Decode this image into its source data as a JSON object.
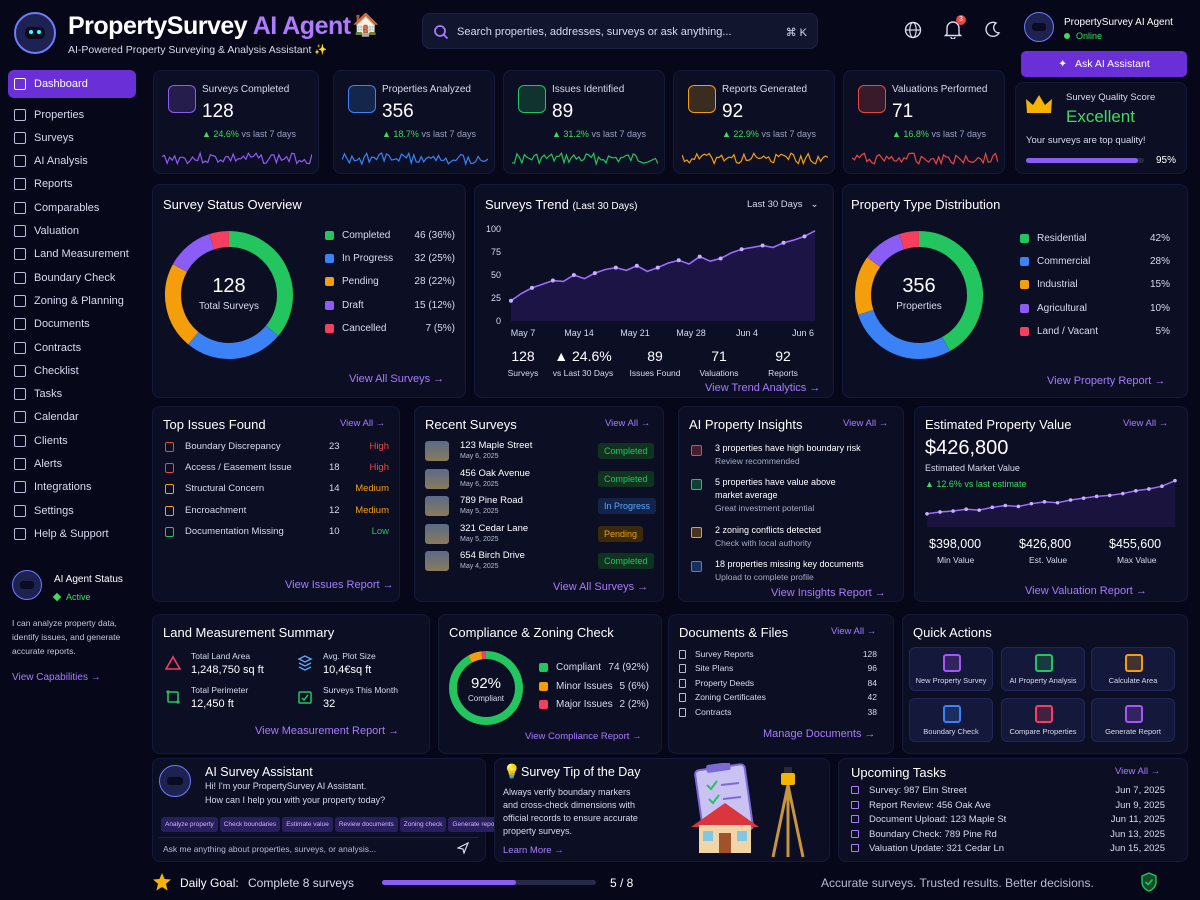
{
  "header": {
    "title_main": "PropertySurvey",
    "title_accent": "AI Agent",
    "subtitle": "AI-Powered Property Surveying & Analysis Assistant ✨",
    "search_placeholder": "Search properties, addresses, surveys or ask anything...",
    "search_shortcut": "⌘ K",
    "notif_count": "3",
    "user_name": "PropertySurvey AI Agent",
    "user_status": "Online",
    "ask_button": "Ask AI Assistant"
  },
  "sidebar": {
    "items": [
      {
        "label": "Dashboard",
        "icon": "dashboard-icon"
      },
      {
        "label": "Properties",
        "icon": "home-icon"
      },
      {
        "label": "Surveys",
        "icon": "clipboard-icon"
      },
      {
        "label": "AI Analysis",
        "icon": "brain-icon"
      },
      {
        "label": "Reports",
        "icon": "report-icon"
      },
      {
        "label": "Comparables",
        "icon": "compare-icon"
      },
      {
        "label": "Valuation",
        "icon": "dollar-icon"
      },
      {
        "label": "Land Measurement",
        "icon": "ruler-icon"
      },
      {
        "label": "Boundary Check",
        "icon": "boundary-icon"
      },
      {
        "label": "Zoning & Planning",
        "icon": "map-icon"
      },
      {
        "label": "Documents",
        "icon": "document-icon"
      },
      {
        "label": "Contracts",
        "icon": "contract-icon"
      },
      {
        "label": "Checklist",
        "icon": "checklist-icon"
      },
      {
        "label": "Tasks",
        "icon": "tasks-icon"
      },
      {
        "label": "Calendar",
        "icon": "calendar-icon"
      },
      {
        "label": "Clients",
        "icon": "clients-icon"
      },
      {
        "label": "Alerts",
        "icon": "bell-icon"
      },
      {
        "label": "Integrations",
        "icon": "integration-icon"
      },
      {
        "label": "Settings",
        "icon": "gear-icon"
      },
      {
        "label": "Help & Support",
        "icon": "help-icon"
      }
    ],
    "agent_status_title": "AI Agent Status",
    "agent_status": "Active",
    "agent_desc_1": "I can analyze property data,",
    "agent_desc_2": "identify issues, and generate",
    "agent_desc_3": "accurate reports.",
    "capabilities_link": "View Capabilities →"
  },
  "stats": [
    {
      "label": "Surveys Completed",
      "value": "128",
      "delta": "▲ 24.6%",
      "delta_text": "vs last 7 days",
      "color": "#8b5cf6"
    },
    {
      "label": "Properties Analyzed",
      "value": "356",
      "delta": "▲ 18.7%",
      "delta_text": "vs last 7 days",
      "color": "#3b82f6"
    },
    {
      "label": "Issues Identified",
      "value": "89",
      "delta": "▲ 31.2%",
      "delta_text": "vs last 7 days",
      "color": "#22c55e"
    },
    {
      "label": "Reports Generated",
      "value": "92",
      "delta": "▲ 22.9%",
      "delta_text": "vs last 7 days",
      "color": "#f59e0b"
    },
    {
      "label": "Valuations Performed",
      "value": "71",
      "delta": "▲ 16.8%",
      "delta_text": "vs last 7 days",
      "color": "#ef4444"
    }
  ],
  "quality": {
    "label": "Survey Quality Score",
    "value": "Excellent",
    "note": "Your surveys are top quality!",
    "percent": "95%",
    "fill": 0.95
  },
  "status_overview": {
    "title": "Survey Status Overview",
    "center_value": "128",
    "center_label": "Total Surveys",
    "link": "View All Surveys →",
    "items": [
      {
        "label": "Completed",
        "value": "46 (36%)",
        "color": "#22c55e",
        "share": 36
      },
      {
        "label": "In Progress",
        "value": "32 (25%)",
        "color": "#3b82f6",
        "share": 25
      },
      {
        "label": "Pending",
        "value": "28 (22%)",
        "color": "#f59e0b",
        "share": 22
      },
      {
        "label": "Draft",
        "value": "15 (12%)",
        "color": "#8b5cf6",
        "share": 12
      },
      {
        "label": "Cancelled",
        "value": "7 (5%)",
        "color": "#f43f5e",
        "share": 5
      }
    ]
  },
  "chart_data": {
    "type": "line",
    "title": "Surveys Trend",
    "subtitle": "(Last 30 Days)",
    "dropdown": "Last 30 Days",
    "x_ticks": [
      "May 7",
      "May 14",
      "May 21",
      "May 28",
      "Jun 4",
      "Jun 6"
    ],
    "y_ticks": [
      "100",
      "75",
      "50",
      "25",
      "0"
    ],
    "ylim": [
      0,
      100
    ],
    "values": [
      22,
      30,
      36,
      40,
      44,
      43,
      50,
      46,
      52,
      56,
      58,
      55,
      60,
      54,
      58,
      63,
      66,
      62,
      70,
      65,
      68,
      74,
      78,
      80,
      82,
      80,
      85,
      88,
      92,
      98
    ],
    "summary": [
      {
        "value": "128",
        "label": "Surveys"
      },
      {
        "value": "▲ 24.6%",
        "label": "vs Last 30 Days"
      },
      {
        "value": "89",
        "label": "Issues Found"
      },
      {
        "value": "71",
        "label": "Valuations"
      },
      {
        "value": "92",
        "label": "Reports"
      }
    ],
    "link": "View Trend Analytics →"
  },
  "type_dist": {
    "title": "Property Type Distribution",
    "center_value": "356",
    "center_label": "Properties",
    "link": "View Property Report →",
    "items": [
      {
        "label": "Residential",
        "value": "42%",
        "color": "#22c55e",
        "share": 42
      },
      {
        "label": "Commercial",
        "value": "28%",
        "color": "#3b82f6",
        "share": 28
      },
      {
        "label": "Industrial",
        "value": "15%",
        "color": "#f59e0b",
        "share": 15
      },
      {
        "label": "Agricultural",
        "value": "10%",
        "color": "#8b5cf6",
        "share": 10
      },
      {
        "label": "Land / Vacant",
        "value": "5%",
        "color": "#f43f5e",
        "share": 5
      }
    ]
  },
  "issues": {
    "title": "Top Issues Found",
    "view_all": "View All →",
    "link": "View Issues Report →",
    "items": [
      {
        "label": "Boundary Discrepancy",
        "count": "23",
        "level": "High",
        "color": "#ef4444"
      },
      {
        "label": "Access / Easement Issue",
        "count": "18",
        "level": "High",
        "color": "#ef4444"
      },
      {
        "label": "Structural Concern",
        "count": "14",
        "level": "Medium",
        "color": "#f59e0b"
      },
      {
        "label": "Encroachment",
        "count": "12",
        "level": "Medium",
        "color": "#f59e0b"
      },
      {
        "label": "Documentation Missing",
        "count": "10",
        "level": "Low",
        "color": "#22c55e"
      }
    ]
  },
  "recent": {
    "title": "Recent Surveys",
    "view_all": "View All →",
    "link": "View All Surveys →",
    "items": [
      {
        "addr": "123 Maple Street",
        "date": "May 6, 2025",
        "status": "Completed",
        "color": "#22c55e",
        "bg": "#10331f"
      },
      {
        "addr": "456 Oak Avenue",
        "date": "May 6, 2025",
        "status": "Completed",
        "color": "#22c55e",
        "bg": "#10331f"
      },
      {
        "addr": "789 Pine Road",
        "date": "May 5, 2025",
        "status": "In Progress",
        "color": "#60a5fa",
        "bg": "#12244a"
      },
      {
        "addr": "321 Cedar Lane",
        "date": "May 5, 2025",
        "status": "Pending",
        "color": "#f59e0b",
        "bg": "#3a2a0c"
      },
      {
        "addr": "654 Birch Drive",
        "date": "May 4, 2025",
        "status": "Completed",
        "color": "#22c55e",
        "bg": "#10331f"
      }
    ]
  },
  "insights": {
    "title": "AI Property Insights",
    "view_all": "View All →",
    "link": "View Insights Report →",
    "items": [
      {
        "line1": "3 properties have high boundary risk",
        "line2": "",
        "sub": "Review recommended",
        "color": "#ef4444"
      },
      {
        "line1": "5 properties have value above",
        "line2": "market average",
        "sub": "Great investment potential",
        "color": "#22c55e"
      },
      {
        "line1": "2 zoning conflicts detected",
        "line2": "",
        "sub": "Check with local authority",
        "color": "#f59e0b"
      },
      {
        "line1": "18 properties missing key documents",
        "line2": "",
        "sub": "Upload to complete profile",
        "color": "#3b82f6"
      }
    ]
  },
  "valuation": {
    "title": "Estimated Property Value",
    "view_all": "View All →",
    "value": "$426,800",
    "sub": "Estimated Market Value",
    "delta": "▲ 12.6% vs last estimate",
    "points": [
      20,
      24,
      26,
      30,
      28,
      34,
      38,
      36,
      42,
      46,
      44,
      50,
      54,
      58,
      60,
      64,
      70,
      74,
      80,
      92
    ],
    "min": "$398,000",
    "min_label": "Min Value",
    "est": "$426,800",
    "est_label": "Est. Value",
    "max": "$455,600",
    "max_label": "Max Value",
    "link": "View Valuation Report →"
  },
  "land": {
    "title": "Land Measurement Summary",
    "area_label": "Total Land Area",
    "area": "1,248,750 sq ft",
    "plot_label": "Avg. Plot Size",
    "plot": "10,4€sq ft",
    "perim_label": "Total Perimeter",
    "perim": "12,450 ft",
    "month_label": "Surveys This Month",
    "month": "32",
    "link": "View Measurement Report →"
  },
  "compliance": {
    "title": "Compliance & Zoning Check",
    "center": "92%",
    "center_label": "Compliant",
    "items": [
      {
        "label": "Compliant",
        "value": "74 (92%)",
        "color": "#22c55e",
        "share": 92
      },
      {
        "label": "Minor Issues",
        "value": "5 (6%)",
        "color": "#f59e0b",
        "share": 6
      },
      {
        "label": "Major Issues",
        "value": "2 (2%)",
        "color": "#f43f5e",
        "share": 2
      }
    ],
    "link": "View Compliance Report →"
  },
  "documents": {
    "title": "Documents & Files",
    "view_all": "View All →",
    "link": "Manage Documents →",
    "items": [
      {
        "label": "Survey Reports",
        "count": "128"
      },
      {
        "label": "Site Plans",
        "count": "96"
      },
      {
        "label": "Property Deeds",
        "count": "84"
      },
      {
        "label": "Zoning Certificates",
        "count": "42"
      },
      {
        "label": "Contracts",
        "count": "38"
      }
    ]
  },
  "quick": {
    "title": "Quick Actions",
    "items": [
      {
        "label": "New Property Survey",
        "color": "#a855f7"
      },
      {
        "label": "AI Property Analysis",
        "color": "#22c55e"
      },
      {
        "label": "Calculate Area",
        "color": "#f59e0b"
      },
      {
        "label": "Boundary Check",
        "color": "#3b82f6"
      },
      {
        "label": "Compare Properties",
        "color": "#f43f5e"
      },
      {
        "label": "Generate Report",
        "color": "#a855f7"
      }
    ]
  },
  "assistant": {
    "title": "AI Survey Assistant",
    "msg1": "Hi! I'm your PropertySurvey AI Assistant.",
    "msg2": "How can I help you with your property today?",
    "chips": [
      "Analyze property",
      "Check boundaries",
      "Estimate value",
      "Review documents",
      "Zoning check",
      "Generate report"
    ],
    "placeholder": "Ask me anything about properties, surveys, or analysis..."
  },
  "tip": {
    "title": "Survey Tip of the Day",
    "l1": "Always verify boundary markers",
    "l2": "and cross-check dimensions with",
    "l3": "official records to ensure accurate",
    "l4": "property surveys.",
    "link": "Learn More →"
  },
  "tasks": {
    "title": "Upcoming Tasks",
    "view_all": "View All →",
    "items": [
      {
        "label": "Survey: 987 Elm Street",
        "date": "Jun 7, 2025"
      },
      {
        "label": "Report Review: 456 Oak Ave",
        "date": "Jun 9, 2025"
      },
      {
        "label": "Document Upload: 123 Maple St",
        "date": "Jun 11, 2025"
      },
      {
        "label": "Boundary Check: 789 Pine Rd",
        "date": "Jun 13, 2025"
      },
      {
        "label": "Valuation Update: 321 Cedar Ln",
        "date": "Jun 15, 2025"
      }
    ]
  },
  "footer": {
    "goal_label": "Daily Goal:",
    "goal_text": "Complete 8 surveys",
    "goal_count": "5 / 8",
    "goal_fill": 0.625,
    "tagline": "Accurate surveys. Trusted results. Better decisions."
  }
}
